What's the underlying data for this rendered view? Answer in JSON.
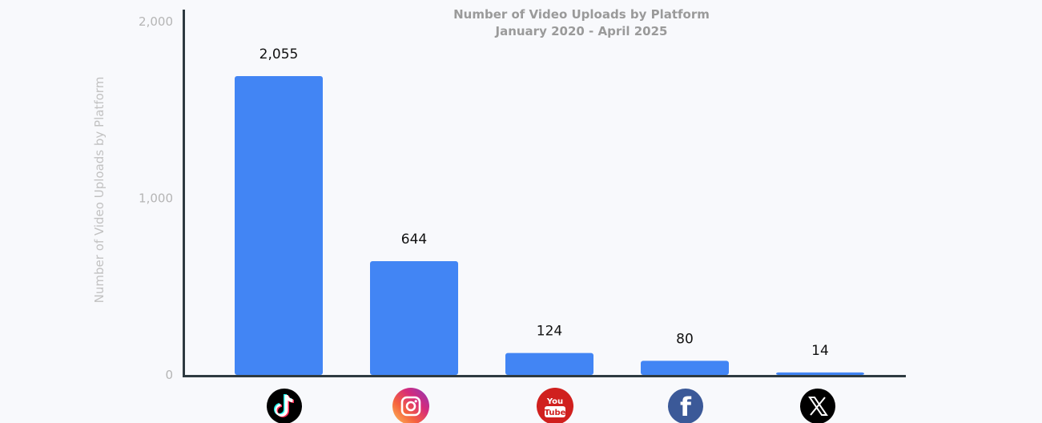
{
  "chart_data": {
    "type": "bar",
    "title": "Number of Video Uploads by Platform",
    "subtitle": "January 2020 - April 2025",
    "ylabel": "Number of Video Uploads by Platform",
    "xlabel": "",
    "ylim": [
      0,
      2000
    ],
    "yticks": [
      "0",
      "1,000",
      "2,000"
    ],
    "ytick_values": [
      0,
      1000,
      2000
    ],
    "grid": false,
    "categories": [
      "TikTok",
      "Instagram",
      "YouTube",
      "Facebook",
      "X"
    ],
    "category_icons": [
      "tiktok-icon",
      "instagram-icon",
      "youtube-icon",
      "facebook-icon",
      "x-icon"
    ],
    "values": [
      2055,
      644,
      124,
      80,
      14
    ],
    "data_labels": [
      "2,055",
      "644",
      "124",
      "80",
      "14"
    ]
  },
  "icon_text": {
    "youtube_top": "You",
    "youtube_bottom": "Tube",
    "facebook": "f"
  },
  "colors": {
    "bar": "#4285f4",
    "axis": "#2e3a40",
    "background": "#f8f9fc"
  }
}
